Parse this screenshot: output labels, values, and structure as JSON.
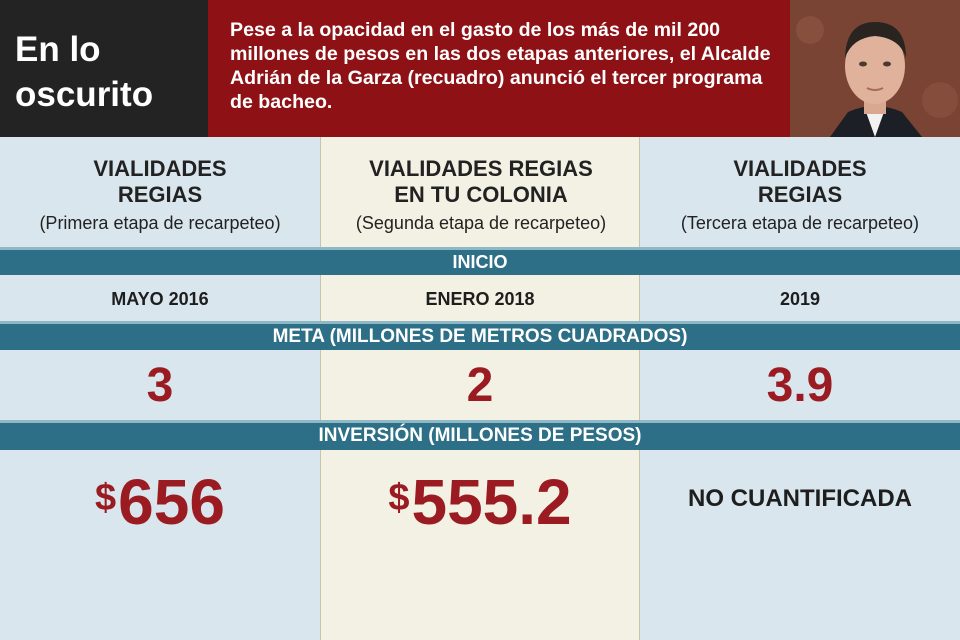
{
  "header": {
    "title_line1": "En lo",
    "title_line2": "oscurito",
    "intro": "Pese a la opacidad en el gasto de los más de mil 200 millones de pesos en las dos etapas anteriores, el Alcalde Adrián de la Garza (recuadro) anunció el tercer programa de bacheo."
  },
  "columns": [
    {
      "name_line1": "VIALIDADES",
      "name_line2": "REGIAS",
      "subtitle": "(Primera etapa de recarpeteo)"
    },
    {
      "name_line1": "VIALIDADES REGIAS",
      "name_line2": "EN TU COLONIA",
      "subtitle": "(Segunda etapa de recarpeteo)"
    },
    {
      "name_line1": "VIALIDADES",
      "name_line2": "REGIAS",
      "subtitle": "(Tercera etapa de recarpeteo)"
    }
  ],
  "sections": {
    "start_label": "INICIO",
    "goal_label": "META (MILLONES DE METROS CUADRADOS)",
    "investment_label": "INVERSIÓN (MILLONES DE PESOS)"
  },
  "start": [
    "MAYO 2016",
    "ENERO 2018",
    "2019"
  ],
  "goal": [
    "3",
    "2",
    "3.9"
  ],
  "investment": {
    "currency": "$",
    "values": [
      "656",
      "555.2"
    ],
    "third": "NO CUANTIFICADA"
  },
  "colors": {
    "dark": "#232323",
    "red_header": "#8e1215",
    "teal_band": "#2d6f86",
    "value_red": "#9b1b22",
    "blue_column": "#d9e6ee",
    "cream_column": "#f3f1e3"
  }
}
